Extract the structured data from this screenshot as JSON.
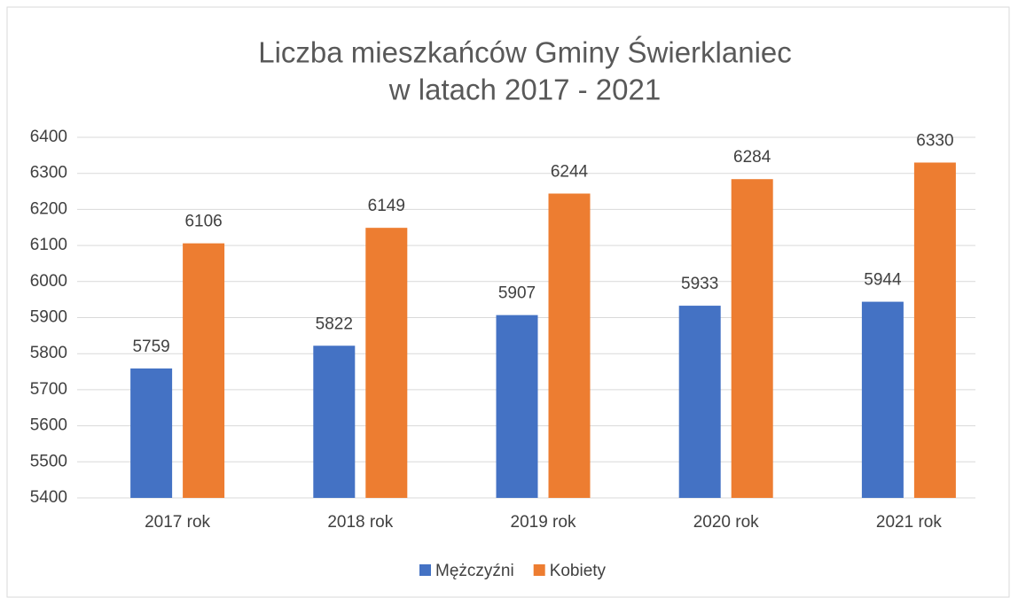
{
  "chart_data": {
    "type": "bar",
    "title": [
      "Liczba mieszkańców Gminy Świerklaniec",
      "w latach 2017 - 2021"
    ],
    "categories": [
      "2017 rok",
      "2018 rok",
      "2019 rok",
      "2020 rok",
      "2021 rok"
    ],
    "series": [
      {
        "name": "Mężczyźni",
        "color": "#4472c4",
        "values": [
          5759,
          5822,
          5907,
          5933,
          5944
        ]
      },
      {
        "name": "Kobiety",
        "color": "#ed7d31",
        "values": [
          6106,
          6149,
          6244,
          6284,
          6330
        ]
      }
    ],
    "ylim": [
      5400,
      6400
    ],
    "yticks": [
      5400,
      5500,
      5600,
      5700,
      5800,
      5900,
      6000,
      6100,
      6200,
      6300,
      6400
    ],
    "grid": true,
    "legend": "bottom"
  }
}
